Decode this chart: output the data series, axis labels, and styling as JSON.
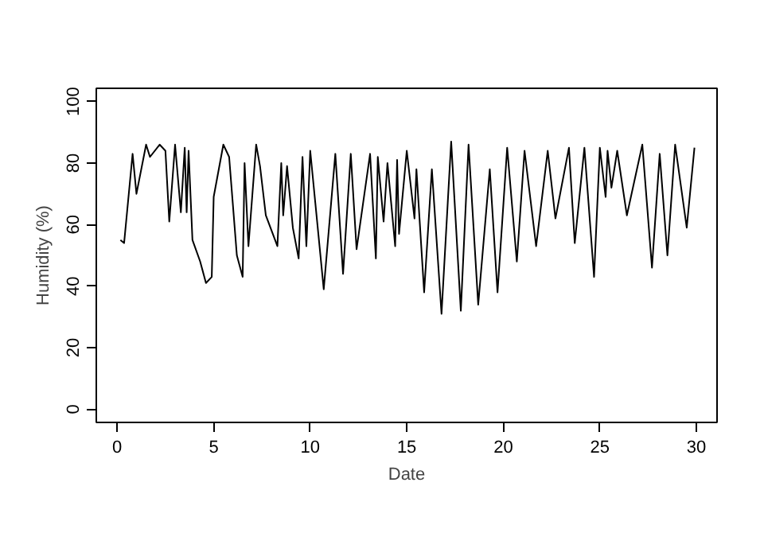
{
  "chart_data": {
    "type": "line",
    "xlabel": "Date",
    "ylabel": "Humidity (%)",
    "x": [
      0.17,
      0.36,
      0.8,
      1.0,
      1.5,
      1.7,
      2.2,
      2.5,
      2.7,
      3.0,
      3.3,
      3.5,
      3.6,
      3.7,
      3.9,
      4.3,
      4.6,
      4.9,
      5.0,
      5.5,
      5.8,
      6.2,
      6.5,
      6.6,
      6.8,
      7.2,
      7.4,
      7.7,
      8.3,
      8.5,
      8.6,
      8.8,
      9.1,
      9.4,
      9.6,
      9.8,
      10.0,
      10.7,
      11.3,
      11.7,
      12.1,
      12.4,
      13.1,
      13.4,
      13.5,
      13.8,
      14.0,
      14.4,
      14.5,
      14.6,
      15.0,
      15.4,
      15.5,
      15.9,
      16.3,
      16.8,
      17.3,
      17.8,
      18.2,
      18.7,
      19.3,
      19.7,
      20.2,
      20.7,
      21.1,
      21.7,
      22.3,
      22.7,
      23.4,
      23.7,
      24.2,
      24.7,
      25.0,
      25.3,
      25.4,
      25.6,
      25.9,
      26.4,
      27.2,
      27.7,
      28.1,
      28.5,
      28.9,
      29.5,
      29.9
    ],
    "values": [
      55,
      54,
      83,
      70,
      86,
      82,
      86,
      84,
      61,
      86,
      64,
      85,
      64,
      84,
      55,
      48,
      41,
      43,
      69,
      86,
      82,
      50,
      43,
      80,
      53,
      86,
      79,
      63,
      53,
      80,
      63,
      79,
      59,
      49,
      82,
      53,
      84,
      39,
      83,
      44,
      83,
      52,
      83,
      49,
      82,
      61,
      80,
      53,
      81,
      57,
      84,
      62,
      78,
      38,
      78,
      31,
      87,
      32,
      86,
      34,
      78,
      38,
      85,
      48,
      84,
      53,
      84,
      62,
      85,
      54,
      85,
      43,
      85,
      69,
      84,
      72,
      84,
      63,
      86,
      46,
      83,
      50,
      86,
      59,
      85
    ],
    "color": "#000000",
    "xlim": [
      -1.08,
      31.07
    ],
    "ylim": [
      -4.3,
      104.3
    ],
    "xticks": [
      0,
      5,
      10,
      15,
      20,
      25,
      30
    ],
    "yticks": [
      0,
      20,
      40,
      60,
      80,
      100
    ],
    "grid": false,
    "marker": "none",
    "line_style": "solid"
  }
}
